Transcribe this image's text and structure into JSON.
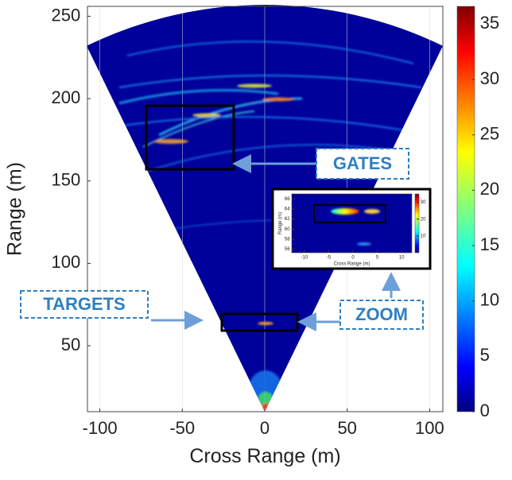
{
  "chart_data": [
    {
      "type": "heatmap",
      "xlabel": "Cross Range (m)",
      "ylabel": "Range (m)",
      "xlim": [
        -107.5,
        108
      ],
      "xticks": [
        -100,
        -50,
        0,
        50,
        100
      ],
      "ylim": [
        10,
        256
      ],
      "yticks": [
        50,
        100,
        150,
        200,
        250
      ],
      "clim": [
        0,
        36.6
      ],
      "cticks": [
        0,
        5,
        10,
        15,
        20,
        25,
        30,
        35
      ],
      "annotations": [
        "GATES",
        "TARGETS",
        "ZOOM"
      ]
    },
    {
      "type": "heatmap",
      "xlabel": "Cross Range (m)",
      "ylabel": "Range (m)",
      "xlim": [
        -12.6,
        12.1
      ],
      "xticks": [
        -10,
        -5,
        0,
        5,
        10
      ],
      "ylim": [
        55.3,
        67
      ],
      "yticks": [
        56,
        58,
        60,
        62,
        64,
        66
      ],
      "clim": [
        0,
        35
      ],
      "cticks": [
        10,
        20,
        30
      ]
    }
  ]
}
